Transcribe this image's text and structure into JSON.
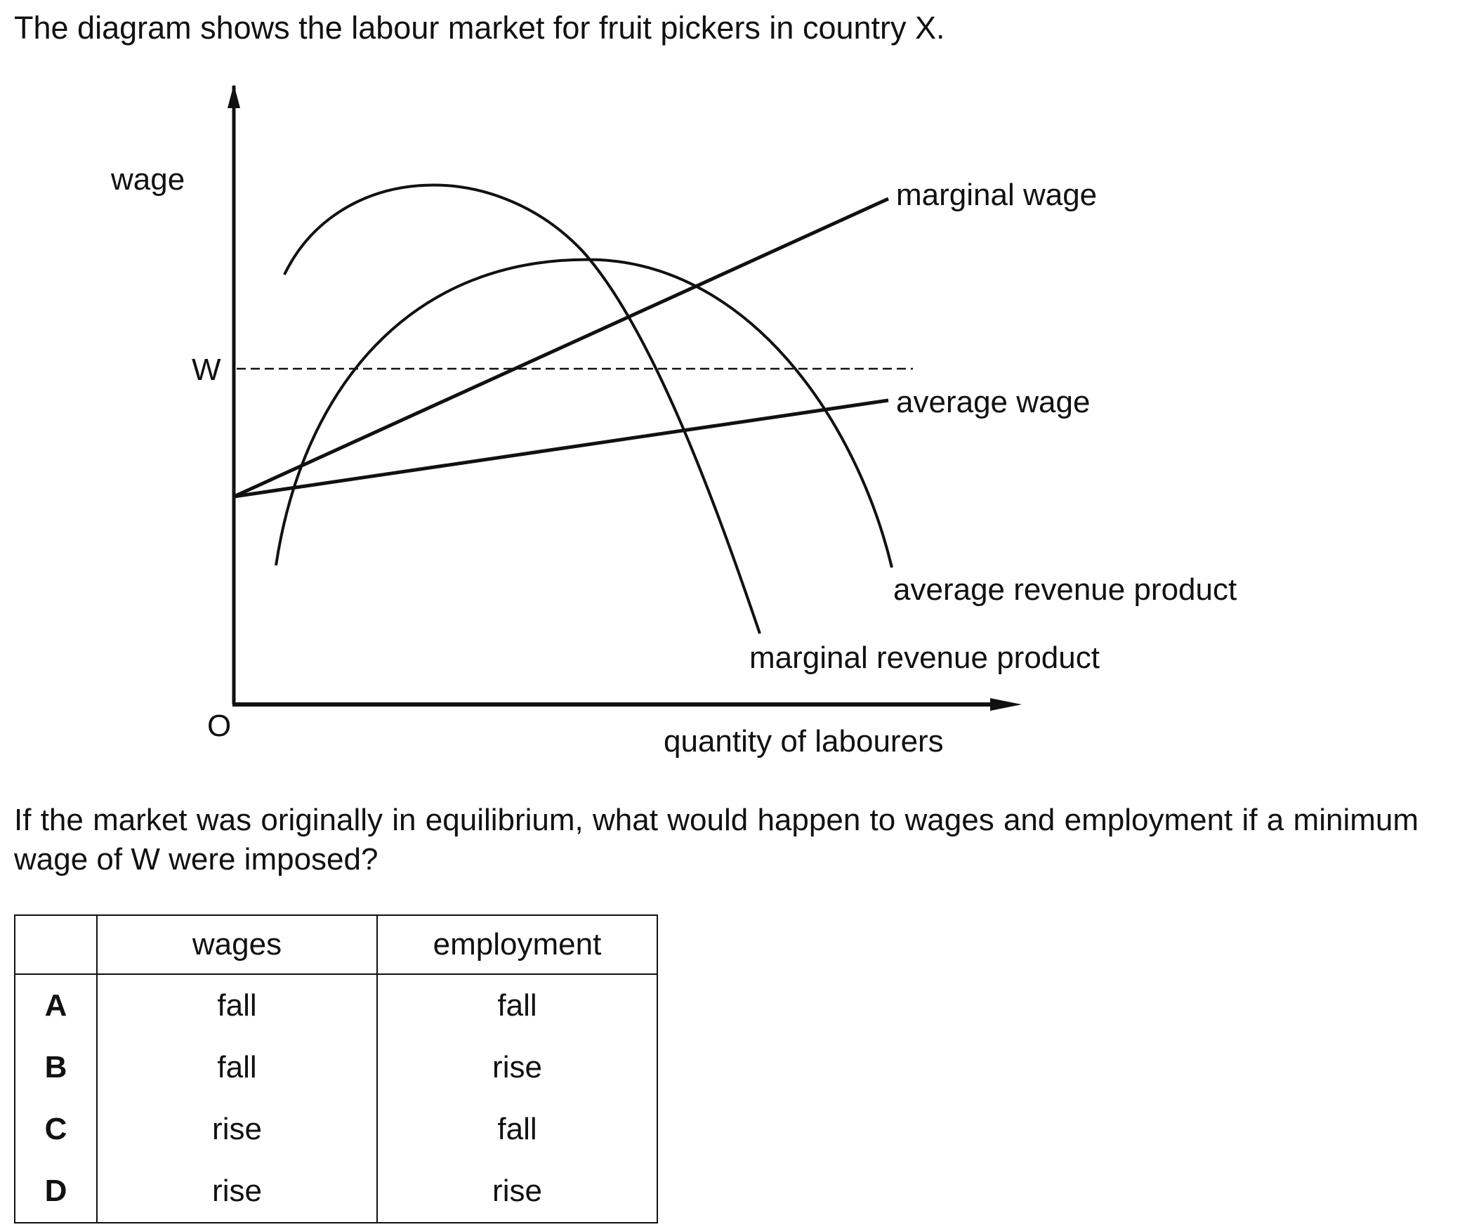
{
  "intro_text": "The diagram shows the labour market for fruit pickers in country X.",
  "diagram": {
    "y_axis_label": "wage",
    "x_axis_label": "quantity of labourers",
    "origin_label": "O",
    "min_wage_label": "W",
    "curves": {
      "marginal_wage": "marginal wage",
      "average_wage": "average wage",
      "average_revenue_product": "average revenue product",
      "marginal_revenue_product": "marginal revenue product"
    }
  },
  "question_text": "If the market was originally in equilibrium, what would happen to wages and employment if a minimum wage of W were imposed?",
  "table": {
    "headers": [
      "",
      "wages",
      "employment"
    ],
    "rows": [
      {
        "key": "A",
        "wages": "fall",
        "employment": "fall"
      },
      {
        "key": "B",
        "wages": "fall",
        "employment": "rise"
      },
      {
        "key": "C",
        "wages": "rise",
        "employment": "fall"
      },
      {
        "key": "D",
        "wages": "rise",
        "employment": "rise"
      }
    ]
  }
}
